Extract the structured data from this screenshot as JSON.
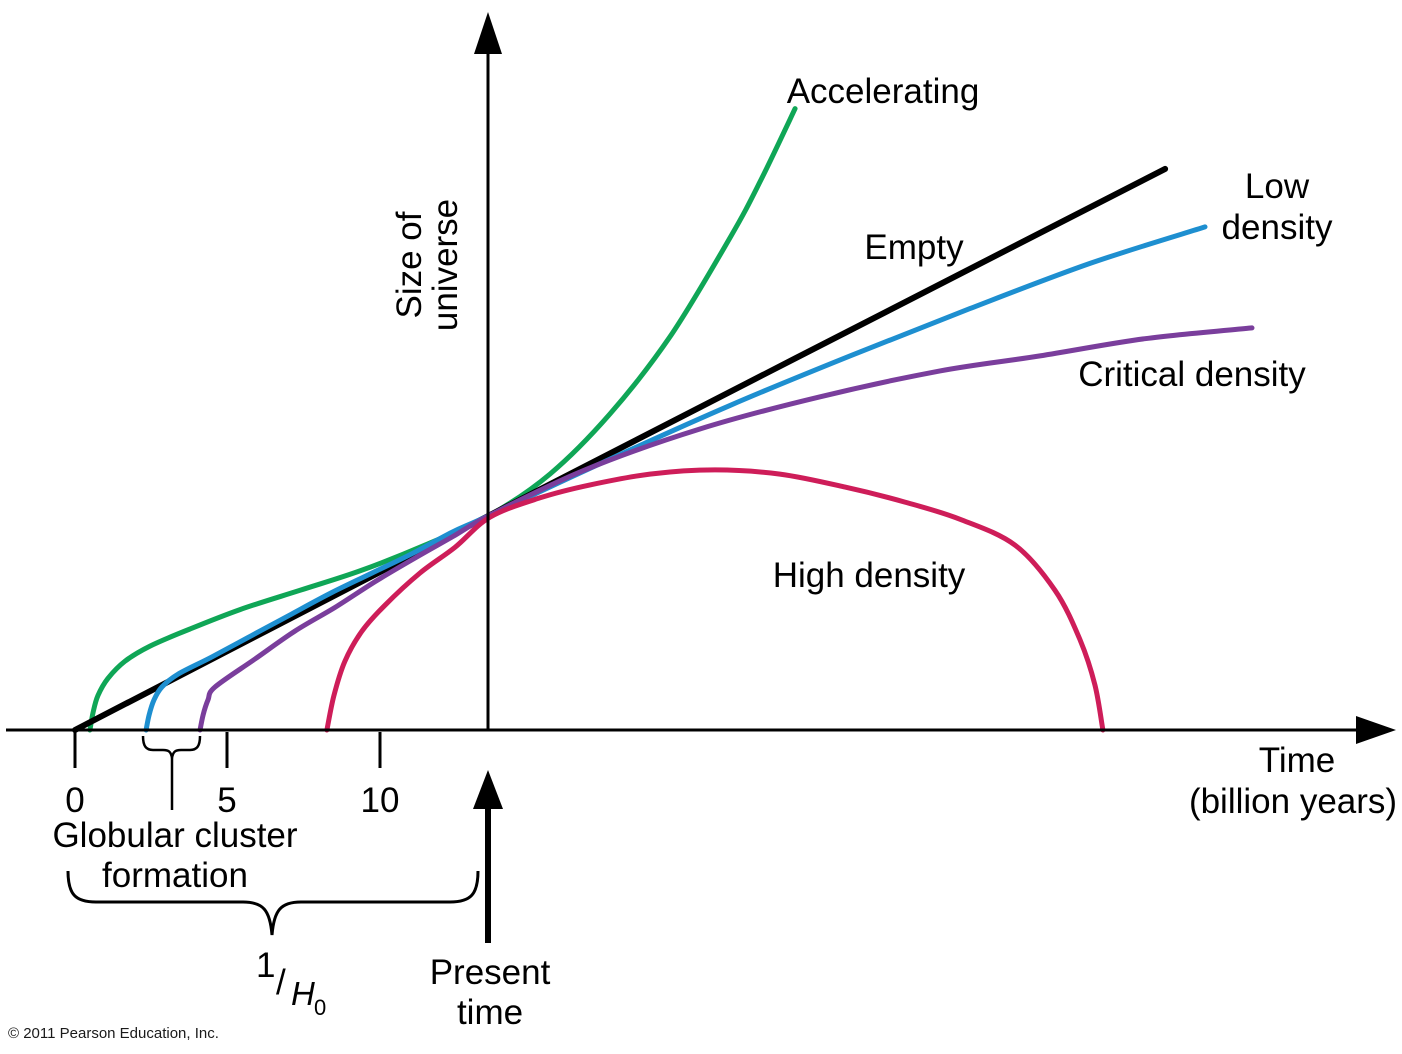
{
  "copyright": "© 2011 Pearson Education, Inc.",
  "colors": {
    "accelerating": "#0FA656",
    "empty": "#000000",
    "low_density": "#1E8FD0",
    "critical_density": "#7A3E9C",
    "high_density": "#CE1D59",
    "axis": "#000000"
  },
  "labels": {
    "accelerating": "Accelerating",
    "empty": "Empty",
    "low_line1": "Low",
    "low_line2": "density",
    "critical": "Critical density",
    "high": "High density",
    "xaxis_line1": "Time",
    "xaxis_line2": "(billion years)",
    "yaxis_line1": "Size of",
    "yaxis_line2": "universe",
    "tick0": "0",
    "tick5": "5",
    "tick10": "10",
    "globular_line1": "Globular cluster",
    "globular_line2": "formation",
    "hubble_one": "1",
    "hubble_slash": "/",
    "hubble_H": "H",
    "hubble_sub0": "0",
    "present_line1": "Present",
    "present_line2": "time"
  },
  "chart_data": {
    "type": "line",
    "xlabel": "Time (billion years)",
    "ylabel": "Size of universe",
    "x_ticks": [
      0,
      5,
      10
    ],
    "x_range": [
      -2.3,
      43
    ],
    "y_unit_note": "size of universe in units of present size (1.0 = today)",
    "present_time_gyr": 13.6,
    "hubble_time_brace_span_gyr": [
      0,
      13.2
    ],
    "globular_cluster_formation_span_gyr": [
      2.2,
      4.1
    ],
    "legend_position": "labels beside curves",
    "grid": false,
    "series": [
      {
        "name": "Accelerating",
        "color": "#0FA656",
        "points": [
          [
            0.49,
            0
          ],
          [
            0.59,
            0.08
          ],
          [
            0.75,
            0.16
          ],
          [
            1.08,
            0.24
          ],
          [
            1.64,
            0.32
          ],
          [
            2.46,
            0.39
          ],
          [
            3.77,
            0.47
          ],
          [
            5.41,
            0.56
          ],
          [
            7.38,
            0.65
          ],
          [
            9.34,
            0.74
          ],
          [
            11.48,
            0.86
          ],
          [
            13.61,
            1.0
          ],
          [
            15.57,
            1.19
          ],
          [
            17.54,
            1.47
          ],
          [
            19.51,
            1.83
          ],
          [
            21.48,
            2.29
          ],
          [
            22.46,
            2.55
          ],
          [
            23.61,
            2.89
          ]
        ]
      },
      {
        "name": "Empty",
        "color": "#000000",
        "points": [
          [
            0,
            0
          ],
          [
            13.61,
            1.0
          ],
          [
            35.74,
            2.61
          ]
        ]
      },
      {
        "name": "Low density",
        "color": "#1E8FD0",
        "points": [
          [
            2.33,
            0
          ],
          [
            2.43,
            0.07
          ],
          [
            2.59,
            0.14
          ],
          [
            2.85,
            0.2
          ],
          [
            3.38,
            0.26
          ],
          [
            4.49,
            0.34
          ],
          [
            5.8,
            0.44
          ],
          [
            7.11,
            0.54
          ],
          [
            8.43,
            0.64
          ],
          [
            9.74,
            0.73
          ],
          [
            11.05,
            0.82
          ],
          [
            12.36,
            0.92
          ],
          [
            13.61,
            1.0
          ],
          [
            17.54,
            1.26
          ],
          [
            21.48,
            1.51
          ],
          [
            25.41,
            1.74
          ],
          [
            29.34,
            1.96
          ],
          [
            33.28,
            2.17
          ],
          [
            37.05,
            2.34
          ]
        ]
      },
      {
        "name": "Critical density",
        "color": "#7A3E9C",
        "points": [
          [
            4.1,
            0
          ],
          [
            4.2,
            0.07
          ],
          [
            4.36,
            0.14
          ],
          [
            4.59,
            0.2
          ],
          [
            5.9,
            0.33
          ],
          [
            7.21,
            0.46
          ],
          [
            8.52,
            0.57
          ],
          [
            9.84,
            0.69
          ],
          [
            11.15,
            0.8
          ],
          [
            12.39,
            0.9
          ],
          [
            13.61,
            1.0
          ],
          [
            16.72,
            1.21
          ],
          [
            20.49,
            1.4
          ],
          [
            24.43,
            1.55
          ],
          [
            28.36,
            1.67
          ],
          [
            31.64,
            1.74
          ],
          [
            35.08,
            1.82
          ],
          [
            38.59,
            1.87
          ]
        ]
      },
      {
        "name": "High density",
        "color": "#CE1D59",
        "points": [
          [
            8.26,
            0
          ],
          [
            8.49,
            0.16
          ],
          [
            8.85,
            0.32
          ],
          [
            9.41,
            0.46
          ],
          [
            10.16,
            0.58
          ],
          [
            11.31,
            0.73
          ],
          [
            12.46,
            0.85
          ],
          [
            13.61,
            0.99
          ],
          [
            15.25,
            1.08
          ],
          [
            16.89,
            1.14
          ],
          [
            18.85,
            1.19
          ],
          [
            20.98,
            1.21
          ],
          [
            23.11,
            1.19
          ],
          [
            25.25,
            1.13
          ],
          [
            27.21,
            1.06
          ],
          [
            29.02,
            0.98
          ],
          [
            30.82,
            0.86
          ],
          [
            32.13,
            0.65
          ],
          [
            32.95,
            0.42
          ],
          [
            33.44,
            0.21
          ],
          [
            33.7,
            0
          ]
        ]
      }
    ]
  }
}
